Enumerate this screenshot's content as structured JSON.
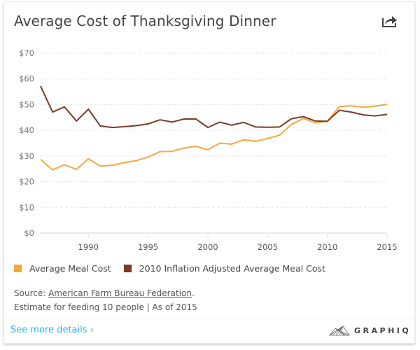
{
  "header": {
    "title": "Average Cost of Thanksgiving Dinner",
    "share_icon": "share-icon"
  },
  "chart_data": {
    "type": "line",
    "title": "Average Cost of Thanksgiving Dinner",
    "xlabel": "",
    "ylabel": "",
    "x": [
      1986,
      1987,
      1988,
      1989,
      1990,
      1991,
      1992,
      1993,
      1994,
      1995,
      1996,
      1997,
      1998,
      1999,
      2000,
      2001,
      2002,
      2003,
      2004,
      2005,
      2006,
      2007,
      2008,
      2009,
      2010,
      2011,
      2012,
      2013,
      2014,
      2015
    ],
    "xlim": [
      1986,
      2015
    ],
    "ylim": [
      0,
      70
    ],
    "x_ticks": [
      1990,
      1995,
      2000,
      2005,
      2010,
      2015
    ],
    "y_ticks": [
      0,
      10,
      20,
      30,
      40,
      50,
      60,
      70
    ],
    "y_tick_labels": [
      "$0",
      "$10",
      "$20",
      "$30",
      "$40",
      "$50",
      "$60",
      "$70"
    ],
    "grid": true,
    "legend_position": "bottom-left",
    "series": [
      {
        "name": "Average Meal Cost",
        "color": "#f5a742",
        "values": [
          28.7,
          24.6,
          26.6,
          24.8,
          28.9,
          26.1,
          26.4,
          27.4,
          28.2,
          29.6,
          31.7,
          31.8,
          33.1,
          33.8,
          32.4,
          35.0,
          34.6,
          36.3,
          35.7,
          36.8,
          38.1,
          42.3,
          44.6,
          42.9,
          43.5,
          49.2,
          49.5,
          49.0,
          49.4,
          50.1
        ]
      },
      {
        "name": "2010 Inflation Adjusted Average Meal Cost",
        "color": "#7a3a24",
        "values": [
          57.2,
          47.1,
          49.1,
          43.6,
          48.2,
          41.7,
          41.1,
          41.4,
          41.8,
          42.5,
          44.1,
          43.2,
          44.4,
          44.4,
          41.1,
          43.2,
          42.0,
          43.1,
          41.3,
          41.2,
          41.3,
          44.5,
          45.3,
          43.6,
          43.5,
          47.8,
          47.1,
          46.0,
          45.6,
          46.2
        ]
      }
    ]
  },
  "legend": [
    {
      "label": "Average Meal Cost",
      "color": "#f5a742"
    },
    {
      "label": "2010 Inflation Adjusted Average Meal Cost",
      "color": "#7a3a24"
    }
  ],
  "source": {
    "prefix": "Source: ",
    "link_text": "American Farm Bureau Federation",
    "suffix": ".",
    "note": "Estimate for feeding 10 people | As of 2015"
  },
  "footer": {
    "more_label": "See more details ›",
    "brand": "GRAPHIQ"
  }
}
